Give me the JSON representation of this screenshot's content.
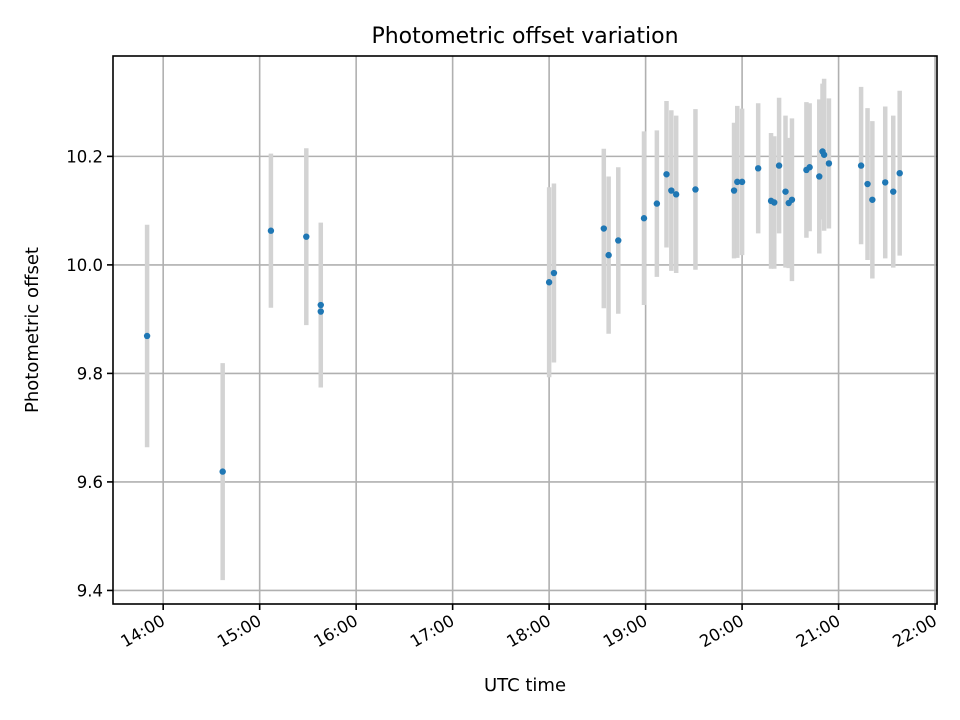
{
  "chart_data": {
    "type": "scatter",
    "title": "Photometric offset variation",
    "xlabel": "UTC time",
    "ylabel": "Photometric offset",
    "x_unit": "UTC time (hours)",
    "xlim": [
      13.48,
      22.02
    ],
    "ylim": [
      9.375,
      10.385
    ],
    "x_ticks": [
      "14:00",
      "15:00",
      "16:00",
      "17:00",
      "18:00",
      "19:00",
      "20:00",
      "21:00",
      "22:00"
    ],
    "y_ticks": [
      "9.4",
      "9.6",
      "9.8",
      "10.0",
      "10.2"
    ],
    "grid": true,
    "colors": {
      "points": "#1f77b4",
      "errorbars": "#d3d3d3"
    },
    "points": [
      {
        "t": "13:50",
        "y": 9.869,
        "err": 0.205
      },
      {
        "t": "14:37",
        "y": 9.619,
        "err": 0.2
      },
      {
        "t": "15:07",
        "y": 10.063,
        "err": 0.142
      },
      {
        "t": "15:29",
        "y": 10.052,
        "err": 0.163
      },
      {
        "t": "15:38",
        "y": 9.926,
        "err": 0.152
      },
      {
        "t": "15:38",
        "y": 9.914,
        "err": 0.087
      },
      {
        "t": "18:00",
        "y": 9.968,
        "err": 0.175
      },
      {
        "t": "18:03",
        "y": 9.985,
        "err": 0.165
      },
      {
        "t": "18:34",
        "y": 10.067,
        "err": 0.147
      },
      {
        "t": "18:37",
        "y": 10.018,
        "err": 0.145
      },
      {
        "t": "18:43",
        "y": 10.045,
        "err": 0.135
      },
      {
        "t": "18:59",
        "y": 10.086,
        "err": 0.16
      },
      {
        "t": "19:07",
        "y": 10.113,
        "err": 0.135
      },
      {
        "t": "19:13",
        "y": 10.167,
        "err": 0.135
      },
      {
        "t": "19:16",
        "y": 10.137,
        "err": 0.148
      },
      {
        "t": "19:19",
        "y": 10.13,
        "err": 0.145
      },
      {
        "t": "19:31",
        "y": 10.139,
        "err": 0.148
      },
      {
        "t": "19:55",
        "y": 10.137,
        "err": 0.125
      },
      {
        "t": "19:57",
        "y": 10.153,
        "err": 0.14
      },
      {
        "t": "20:00",
        "y": 10.153,
        "err": 0.135
      },
      {
        "t": "20:10",
        "y": 10.178,
        "err": 0.12
      },
      {
        "t": "20:18",
        "y": 10.118,
        "err": 0.125
      },
      {
        "t": "20:20",
        "y": 10.115,
        "err": 0.122
      },
      {
        "t": "20:23",
        "y": 10.183,
        "err": 0.125
      },
      {
        "t": "20:27",
        "y": 10.135,
        "err": 0.14
      },
      {
        "t": "20:29",
        "y": 10.114,
        "err": 0.12
      },
      {
        "t": "20:31",
        "y": 10.12,
        "err": 0.15
      },
      {
        "t": "20:40",
        "y": 10.175,
        "err": 0.125
      },
      {
        "t": "20:42",
        "y": 10.18,
        "err": 0.118
      },
      {
        "t": "20:48",
        "y": 10.163,
        "err": 0.142
      },
      {
        "t": "20:50",
        "y": 10.209,
        "err": 0.125
      },
      {
        "t": "20:51",
        "y": 10.203,
        "err": 0.14
      },
      {
        "t": "20:54",
        "y": 10.187,
        "err": 0.12
      },
      {
        "t": "21:14",
        "y": 10.183,
        "err": 0.145
      },
      {
        "t": "21:18",
        "y": 10.149,
        "err": 0.14
      },
      {
        "t": "21:21",
        "y": 10.12,
        "err": 0.145
      },
      {
        "t": "21:29",
        "y": 10.152,
        "err": 0.14
      },
      {
        "t": "21:34",
        "y": 10.135,
        "err": 0.14
      },
      {
        "t": "21:38",
        "y": 10.169,
        "err": 0.152
      }
    ]
  }
}
